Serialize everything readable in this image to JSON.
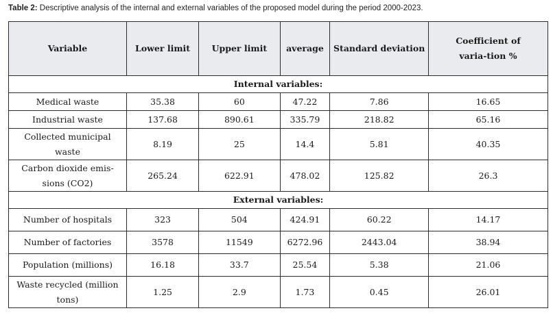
{
  "caption": {
    "label": "Table 2:",
    "text": " Descriptive analysis of the internal and external variables of the proposed model during the period 2000-2023."
  },
  "table": {
    "headers": [
      "Variable",
      "Lower limit",
      "Upper limit",
      "average",
      "Standard deviation",
      "Coefficient of varia-tion %"
    ],
    "internal_title": "Internal variables:",
    "internal_rows": [
      [
        "Medical waste",
        "35.38",
        "60",
        "47.22",
        "7.86",
        "16.65"
      ],
      [
        "Industrial waste",
        "137.68",
        "890.61",
        "335.79",
        "218.82",
        "65.16"
      ],
      [
        "Collected municipal waste",
        "8.19",
        "25",
        "14.4",
        "5.81",
        "40.35"
      ],
      [
        "Carbon dioxide emis-sions (CO2)",
        "265.24",
        "622.91",
        "478.02",
        "125.82",
        "26.3"
      ]
    ],
    "external_title": "External variables:",
    "external_rows": [
      [
        "Number of hospitals",
        "323",
        "504",
        "424.91",
        "60.22",
        "14.17"
      ],
      [
        "Number of factories",
        "3578",
        "11549",
        "6272.96",
        "2443.04",
        "38.94"
      ],
      [
        "Population (millions)",
        "16.18",
        "33.7",
        "25.54",
        "5.38",
        "21.06"
      ],
      [
        "Waste recycled (million tons)",
        "1.25",
        "2.9",
        "1.73",
        "0.45",
        "26.01"
      ]
    ]
  }
}
